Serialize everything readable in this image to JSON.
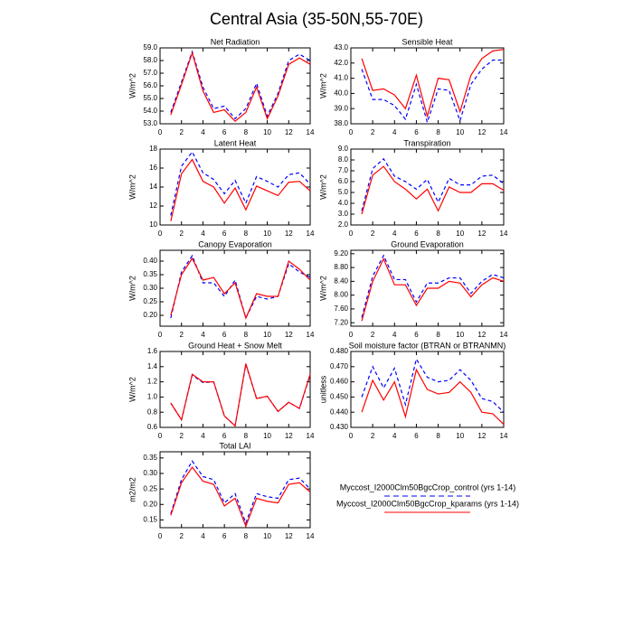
{
  "title": "Central Asia (35-50N,55-70E)",
  "legend": [
    {
      "name": "Myccost_I2000Clm50BgcCrop_control (yrs 1-14)",
      "color": "#0000ff",
      "dashed": true
    },
    {
      "name": "Myccost_I2000Clm50BgcCrop_kparams (yrs 1-14)",
      "color": "#ff0000",
      "dashed": false
    }
  ],
  "chart_data": [
    {
      "type": "line",
      "title": "Net Radiation",
      "ylabel": "W/m^2",
      "x": [
        1,
        2,
        3,
        4,
        5,
        6,
        7,
        8,
        9,
        10,
        11,
        12,
        13,
        14
      ],
      "xlim": [
        0,
        14
      ],
      "xticks": [
        0,
        2,
        4,
        6,
        8,
        10,
        12,
        14
      ],
      "ylim": [
        53,
        59
      ],
      "yticks": [
        {
          "value": 53,
          "label": "53.0"
        },
        {
          "value": 54,
          "label": "54.0"
        },
        {
          "value": 55,
          "label": "55.0"
        },
        {
          "value": 56,
          "label": "56.0"
        },
        {
          "value": 57,
          "label": "57.0"
        },
        {
          "value": 58,
          "label": "58.0"
        },
        {
          "value": 59,
          "label": "59.0"
        }
      ],
      "series": [
        {
          "values": [
            53.9,
            56.3,
            58.7,
            55.9,
            54.2,
            54.4,
            53.4,
            54.2,
            56.2,
            53.6,
            55.4,
            58.0,
            58.5,
            58.0
          ]
        },
        {
          "values": [
            53.7,
            56.1,
            58.6,
            55.6,
            53.9,
            54.1,
            53.2,
            53.9,
            55.9,
            53.4,
            55.2,
            57.7,
            58.2,
            57.7
          ]
        }
      ]
    },
    {
      "type": "line",
      "title": "Sensible Heat",
      "ylabel": "W/m^2",
      "x": [
        1,
        2,
        3,
        4,
        5,
        6,
        7,
        8,
        9,
        10,
        11,
        12,
        13,
        14
      ],
      "xlim": [
        0,
        14
      ],
      "xticks": [
        0,
        2,
        4,
        6,
        8,
        10,
        12,
        14
      ],
      "ylim": [
        38,
        43
      ],
      "yticks": [
        {
          "value": 38,
          "label": "38.0"
        },
        {
          "value": 39,
          "label": "39.0"
        },
        {
          "value": 40,
          "label": "40.0"
        },
        {
          "value": 41,
          "label": "41.0"
        },
        {
          "value": 42,
          "label": "42.0"
        },
        {
          "value": 43,
          "label": "43.0"
        }
      ],
      "series": [
        {
          "values": [
            41.6,
            39.6,
            39.6,
            39.2,
            38.3,
            40.6,
            38.1,
            40.3,
            40.2,
            38.2,
            40.6,
            41.6,
            42.2,
            42.2
          ]
        },
        {
          "values": [
            42.3,
            40.2,
            40.3,
            39.9,
            39.0,
            41.2,
            38.5,
            41.0,
            40.9,
            38.8,
            41.2,
            42.3,
            42.8,
            42.9
          ]
        }
      ]
    },
    {
      "type": "line",
      "title": "Latent Heat",
      "ylabel": "W/m^2",
      "x": [
        1,
        2,
        3,
        4,
        5,
        6,
        7,
        8,
        9,
        10,
        11,
        12,
        13,
        14
      ],
      "xlim": [
        0,
        14
      ],
      "xticks": [
        0,
        2,
        4,
        6,
        8,
        10,
        12,
        14
      ],
      "ylim": [
        10,
        18
      ],
      "yticks": [
        10,
        12,
        14,
        16,
        18
      ],
      "series": [
        {
          "values": [
            11.0,
            16.2,
            17.7,
            15.5,
            14.8,
            13.3,
            14.7,
            12.3,
            15.1,
            14.6,
            14.0,
            15.3,
            15.5,
            14.3
          ]
        },
        {
          "values": [
            10.4,
            15.4,
            16.9,
            14.6,
            14.0,
            12.3,
            13.9,
            11.6,
            14.1,
            13.6,
            13.1,
            14.5,
            14.6,
            13.6
          ]
        }
      ]
    },
    {
      "type": "line",
      "title": "Transpiration",
      "ylabel": "W/m^2",
      "x": [
        1,
        2,
        3,
        4,
        5,
        6,
        7,
        8,
        9,
        10,
        11,
        12,
        13,
        14
      ],
      "xlim": [
        0,
        14
      ],
      "xticks": [
        0,
        2,
        4,
        6,
        8,
        10,
        12,
        14
      ],
      "ylim": [
        2,
        9
      ],
      "yticks": [
        {
          "value": 2,
          "label": "2.0"
        },
        {
          "value": 3,
          "label": "3.0"
        },
        {
          "value": 4,
          "label": "4.0"
        },
        {
          "value": 5,
          "label": "5.0"
        },
        {
          "value": 6,
          "label": "6.0"
        },
        {
          "value": 7,
          "label": "7.0"
        },
        {
          "value": 8,
          "label": "8.0"
        },
        {
          "value": 9,
          "label": "9.0"
        }
      ],
      "series": [
        {
          "values": [
            3.3,
            7.2,
            8.1,
            6.5,
            6.0,
            5.3,
            6.2,
            4.1,
            6.3,
            5.7,
            5.7,
            6.5,
            6.6,
            5.8
          ]
        },
        {
          "values": [
            3.0,
            6.6,
            7.4,
            6.0,
            5.3,
            4.4,
            5.3,
            3.3,
            5.5,
            5.0,
            5.0,
            5.8,
            5.8,
            5.2
          ]
        }
      ]
    },
    {
      "type": "line",
      "title": "Canopy Evaporation",
      "ylabel": "W/m^2",
      "x": [
        1,
        2,
        3,
        4,
        5,
        6,
        7,
        8,
        9,
        10,
        11,
        12,
        13,
        14
      ],
      "xlim": [
        0,
        14
      ],
      "xticks": [
        0,
        2,
        4,
        6,
        8,
        10,
        12,
        14
      ],
      "ylim": [
        0.16,
        0.44
      ],
      "yticks": [
        {
          "value": 0.2,
          "label": "0.20"
        },
        0.25,
        {
          "value": 0.3,
          "label": "0.30"
        },
        0.35,
        {
          "value": 0.4,
          "label": "0.40"
        }
      ],
      "series": [
        {
          "values": [
            0.19,
            0.36,
            0.42,
            0.32,
            0.32,
            0.27,
            0.33,
            0.19,
            0.27,
            0.26,
            0.27,
            0.39,
            0.36,
            0.34
          ]
        },
        {
          "values": [
            0.2,
            0.35,
            0.41,
            0.33,
            0.34,
            0.28,
            0.32,
            0.19,
            0.28,
            0.27,
            0.27,
            0.4,
            0.37,
            0.33
          ]
        }
      ]
    },
    {
      "type": "line",
      "title": "Ground Evaporation",
      "ylabel": "W/m^2",
      "x": [
        1,
        2,
        3,
        4,
        5,
        6,
        7,
        8,
        9,
        10,
        11,
        12,
        13,
        14
      ],
      "xlim": [
        0,
        14
      ],
      "xticks": [
        0,
        2,
        4,
        6,
        8,
        10,
        12,
        14
      ],
      "ylim": [
        7.1,
        9.3
      ],
      "yticks": [
        {
          "value": 7.2,
          "label": "7.20"
        },
        {
          "value": 7.6,
          "label": "7.60"
        },
        {
          "value": 8,
          "label": "8.00"
        },
        {
          "value": 8.4,
          "label": "8.40"
        },
        {
          "value": 8.8,
          "label": "8.80"
        },
        {
          "value": 9.2,
          "label": "9.20"
        }
      ],
      "series": [
        {
          "values": [
            7.35,
            8.55,
            9.15,
            8.45,
            8.45,
            7.8,
            8.35,
            8.35,
            8.5,
            8.5,
            8.05,
            8.4,
            8.6,
            8.5
          ]
        },
        {
          "values": [
            7.25,
            8.4,
            9.05,
            8.3,
            8.3,
            7.7,
            8.2,
            8.2,
            8.4,
            8.35,
            7.95,
            8.3,
            8.5,
            8.4
          ]
        }
      ]
    },
    {
      "type": "line",
      "title": "Ground Heat + Snow Melt",
      "ylabel": "W/m^2",
      "x": [
        1,
        2,
        3,
        4,
        5,
        6,
        7,
        8,
        9,
        10,
        11,
        12,
        13,
        14
      ],
      "xlim": [
        0,
        14
      ],
      "xticks": [
        0,
        2,
        4,
        6,
        8,
        10,
        12,
        14
      ],
      "ylim": [
        0.6,
        1.6
      ],
      "yticks": [
        0.6,
        0.8,
        {
          "value": 1,
          "label": "1.0"
        },
        1.2,
        1.4,
        1.6
      ],
      "series": [
        {
          "values": [
            0.92,
            0.7,
            1.29,
            1.19,
            1.2,
            0.75,
            0.62,
            1.43,
            0.98,
            1.01,
            0.81,
            0.93,
            0.85,
            1.29
          ]
        },
        {
          "values": [
            0.92,
            0.7,
            1.3,
            1.2,
            1.2,
            0.75,
            0.62,
            1.44,
            0.98,
            1.01,
            0.81,
            0.93,
            0.85,
            1.3
          ]
        }
      ]
    },
    {
      "type": "line",
      "title": "Soil moisture factor (BTRAN or BTRANMN)",
      "ylabel": "unitless",
      "x": [
        1,
        2,
        3,
        4,
        5,
        6,
        7,
        8,
        9,
        10,
        11,
        12,
        13,
        14
      ],
      "xlim": [
        0,
        14
      ],
      "xticks": [
        0,
        2,
        4,
        6,
        8,
        10,
        12,
        14
      ],
      "ylim": [
        0.43,
        0.48
      ],
      "yticks": [
        {
          "value": 0.43,
          "label": "0.430"
        },
        {
          "value": 0.44,
          "label": "0.440"
        },
        {
          "value": 0.45,
          "label": "0.450"
        },
        {
          "value": 0.46,
          "label": "0.460"
        },
        {
          "value": 0.47,
          "label": "0.470"
        },
        {
          "value": 0.48,
          "label": "0.480"
        }
      ],
      "series": [
        {
          "values": [
            0.45,
            0.47,
            0.456,
            0.469,
            0.445,
            0.475,
            0.463,
            0.46,
            0.461,
            0.468,
            0.461,
            0.449,
            0.447,
            0.44
          ]
        },
        {
          "values": [
            0.44,
            0.461,
            0.448,
            0.46,
            0.437,
            0.468,
            0.455,
            0.452,
            0.453,
            0.46,
            0.453,
            0.44,
            0.439,
            0.432
          ]
        }
      ]
    },
    {
      "type": "line",
      "title": "Total LAI",
      "ylabel": "m2/m2",
      "x": [
        1,
        2,
        3,
        4,
        5,
        6,
        7,
        8,
        9,
        10,
        11,
        12,
        13,
        14
      ],
      "xlim": [
        0,
        14
      ],
      "xticks": [
        0,
        2,
        4,
        6,
        8,
        10,
        12,
        14
      ],
      "ylim": [
        0.125,
        0.37
      ],
      "yticks": [
        0.15,
        {
          "value": 0.2,
          "label": "0.20"
        },
        0.25,
        {
          "value": 0.3,
          "label": "0.30"
        },
        0.35
      ],
      "series": [
        {
          "values": [
            0.17,
            0.28,
            0.34,
            0.29,
            0.28,
            0.205,
            0.235,
            0.14,
            0.235,
            0.225,
            0.22,
            0.28,
            0.285,
            0.25
          ]
        },
        {
          "values": [
            0.165,
            0.27,
            0.32,
            0.275,
            0.265,
            0.195,
            0.22,
            0.13,
            0.22,
            0.21,
            0.205,
            0.265,
            0.27,
            0.24
          ]
        }
      ]
    }
  ]
}
